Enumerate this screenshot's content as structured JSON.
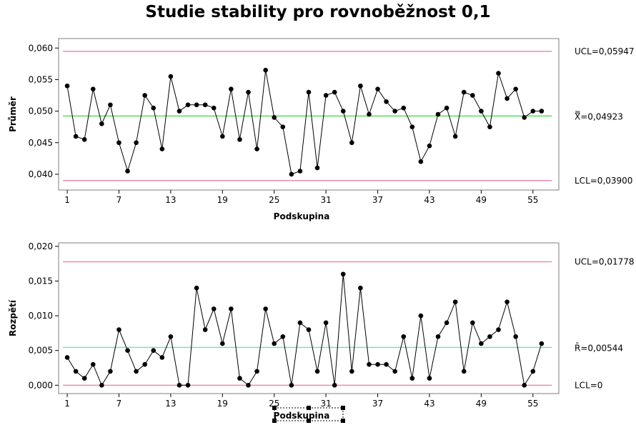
{
  "title": "Studie stability pro rovnoběžnost 0,1",
  "colors": {
    "limit_line": "#f08cab",
    "center_line_xbar": "#55e055",
    "center_line_r": "#7de0b0",
    "data_line": "#000000",
    "frame": "#7f7f7f"
  },
  "chart_data": [
    {
      "type": "line",
      "name": "xbar",
      "ylabel": "Průměr",
      "xlabel": "Podskupina",
      "ylim": [
        0.0375,
        0.0615
      ],
      "xlim": [
        0.0,
        58.0
      ],
      "grid": false,
      "y_ticks": [
        0.04,
        0.045,
        0.05,
        0.055,
        0.06
      ],
      "y_tick_labels": [
        "0,040",
        "0,045",
        "0,050",
        "0,055",
        "0,060"
      ],
      "x_ticks": [
        1,
        7,
        13,
        19,
        25,
        31,
        37,
        43,
        49,
        55
      ],
      "x_tick_labels": [
        "1",
        "7",
        "13",
        "19",
        "25",
        "31",
        "37",
        "43",
        "49",
        "55"
      ],
      "ucl": 0.05947,
      "center": 0.04923,
      "lcl": 0.039,
      "ucl_label": "UCL=0,05947",
      "center_symbol": "X̿",
      "center_label": "=0,04923",
      "lcl_label": "LCL=0,03900",
      "x": [
        1,
        2,
        3,
        4,
        5,
        6,
        7,
        8,
        9,
        10,
        11,
        12,
        13,
        14,
        15,
        16,
        17,
        18,
        19,
        20,
        21,
        22,
        23,
        24,
        25,
        26,
        27,
        28,
        29,
        30,
        31,
        32,
        33,
        34,
        35,
        36,
        37,
        38,
        39,
        40,
        41,
        42,
        43,
        44,
        45,
        46,
        47,
        48,
        49,
        50,
        51,
        52,
        53,
        54,
        55,
        56
      ],
      "values": [
        0.054,
        0.046,
        0.0455,
        0.0535,
        0.048,
        0.051,
        0.045,
        0.0405,
        0.045,
        0.0525,
        0.0505,
        0.044,
        0.0555,
        0.05,
        0.051,
        0.051,
        0.051,
        0.0505,
        0.046,
        0.0535,
        0.0455,
        0.053,
        0.044,
        0.0565,
        0.049,
        0.0475,
        0.04,
        0.0405,
        0.053,
        0.041,
        0.0525,
        0.053,
        0.05,
        0.045,
        0.054,
        0.0495,
        0.0535,
        0.0515,
        0.05,
        0.0505,
        0.0475,
        0.042,
        0.0445,
        0.0495,
        0.0505,
        0.046,
        0.053,
        0.0525,
        0.05,
        0.0475,
        0.056,
        0.052,
        0.0535,
        0.049,
        0.05,
        0.05
      ]
    },
    {
      "type": "line",
      "name": "range",
      "ylabel": "Rozpětí",
      "xlabel": "Podskupina",
      "ylim": [
        -0.0012,
        0.0205
      ],
      "xlim": [
        0.0,
        58.0
      ],
      "grid": false,
      "y_ticks": [
        0.0,
        0.005,
        0.01,
        0.015,
        0.02
      ],
      "y_tick_labels": [
        "0,000",
        "0,005",
        "0,010",
        "0,015",
        "0,020"
      ],
      "x_ticks": [
        1,
        7,
        13,
        19,
        25,
        31,
        37,
        43,
        49,
        55
      ],
      "x_tick_labels": [
        "1",
        "7",
        "13",
        "19",
        "25",
        "31",
        "37",
        "43",
        "49",
        "55"
      ],
      "ucl": 0.01778,
      "center": 0.00544,
      "lcl": 0.0,
      "ucl_label": "UCL=0,01778",
      "center_symbol": "R̄",
      "center_label": "=0,00544",
      "lcl_label": "LCL=0",
      "x": [
        1,
        2,
        3,
        4,
        5,
        6,
        7,
        8,
        9,
        10,
        11,
        12,
        13,
        14,
        15,
        16,
        17,
        18,
        19,
        20,
        21,
        22,
        23,
        24,
        25,
        26,
        27,
        28,
        29,
        30,
        31,
        32,
        33,
        34,
        35,
        36,
        37,
        38,
        39,
        40,
        41,
        42,
        43,
        44,
        45,
        46,
        47,
        48,
        49,
        50,
        51,
        52,
        53,
        54,
        55,
        56
      ],
      "values": [
        0.004,
        0.002,
        0.001,
        0.003,
        0.0,
        0.002,
        0.008,
        0.005,
        0.002,
        0.003,
        0.005,
        0.004,
        0.007,
        0.0,
        0.0,
        0.014,
        0.008,
        0.011,
        0.006,
        0.011,
        0.001,
        0.0,
        0.002,
        0.011,
        0.006,
        0.007,
        0.0,
        0.009,
        0.008,
        0.002,
        0.009,
        0.0,
        0.016,
        0.002,
        0.014,
        0.003,
        0.003,
        0.003,
        0.002,
        0.007,
        0.001,
        0.01,
        0.001,
        0.007,
        0.009,
        0.012,
        0.002,
        0.009,
        0.006,
        0.007,
        0.008,
        0.012,
        0.007,
        0.0,
        0.002,
        0.006
      ]
    }
  ]
}
